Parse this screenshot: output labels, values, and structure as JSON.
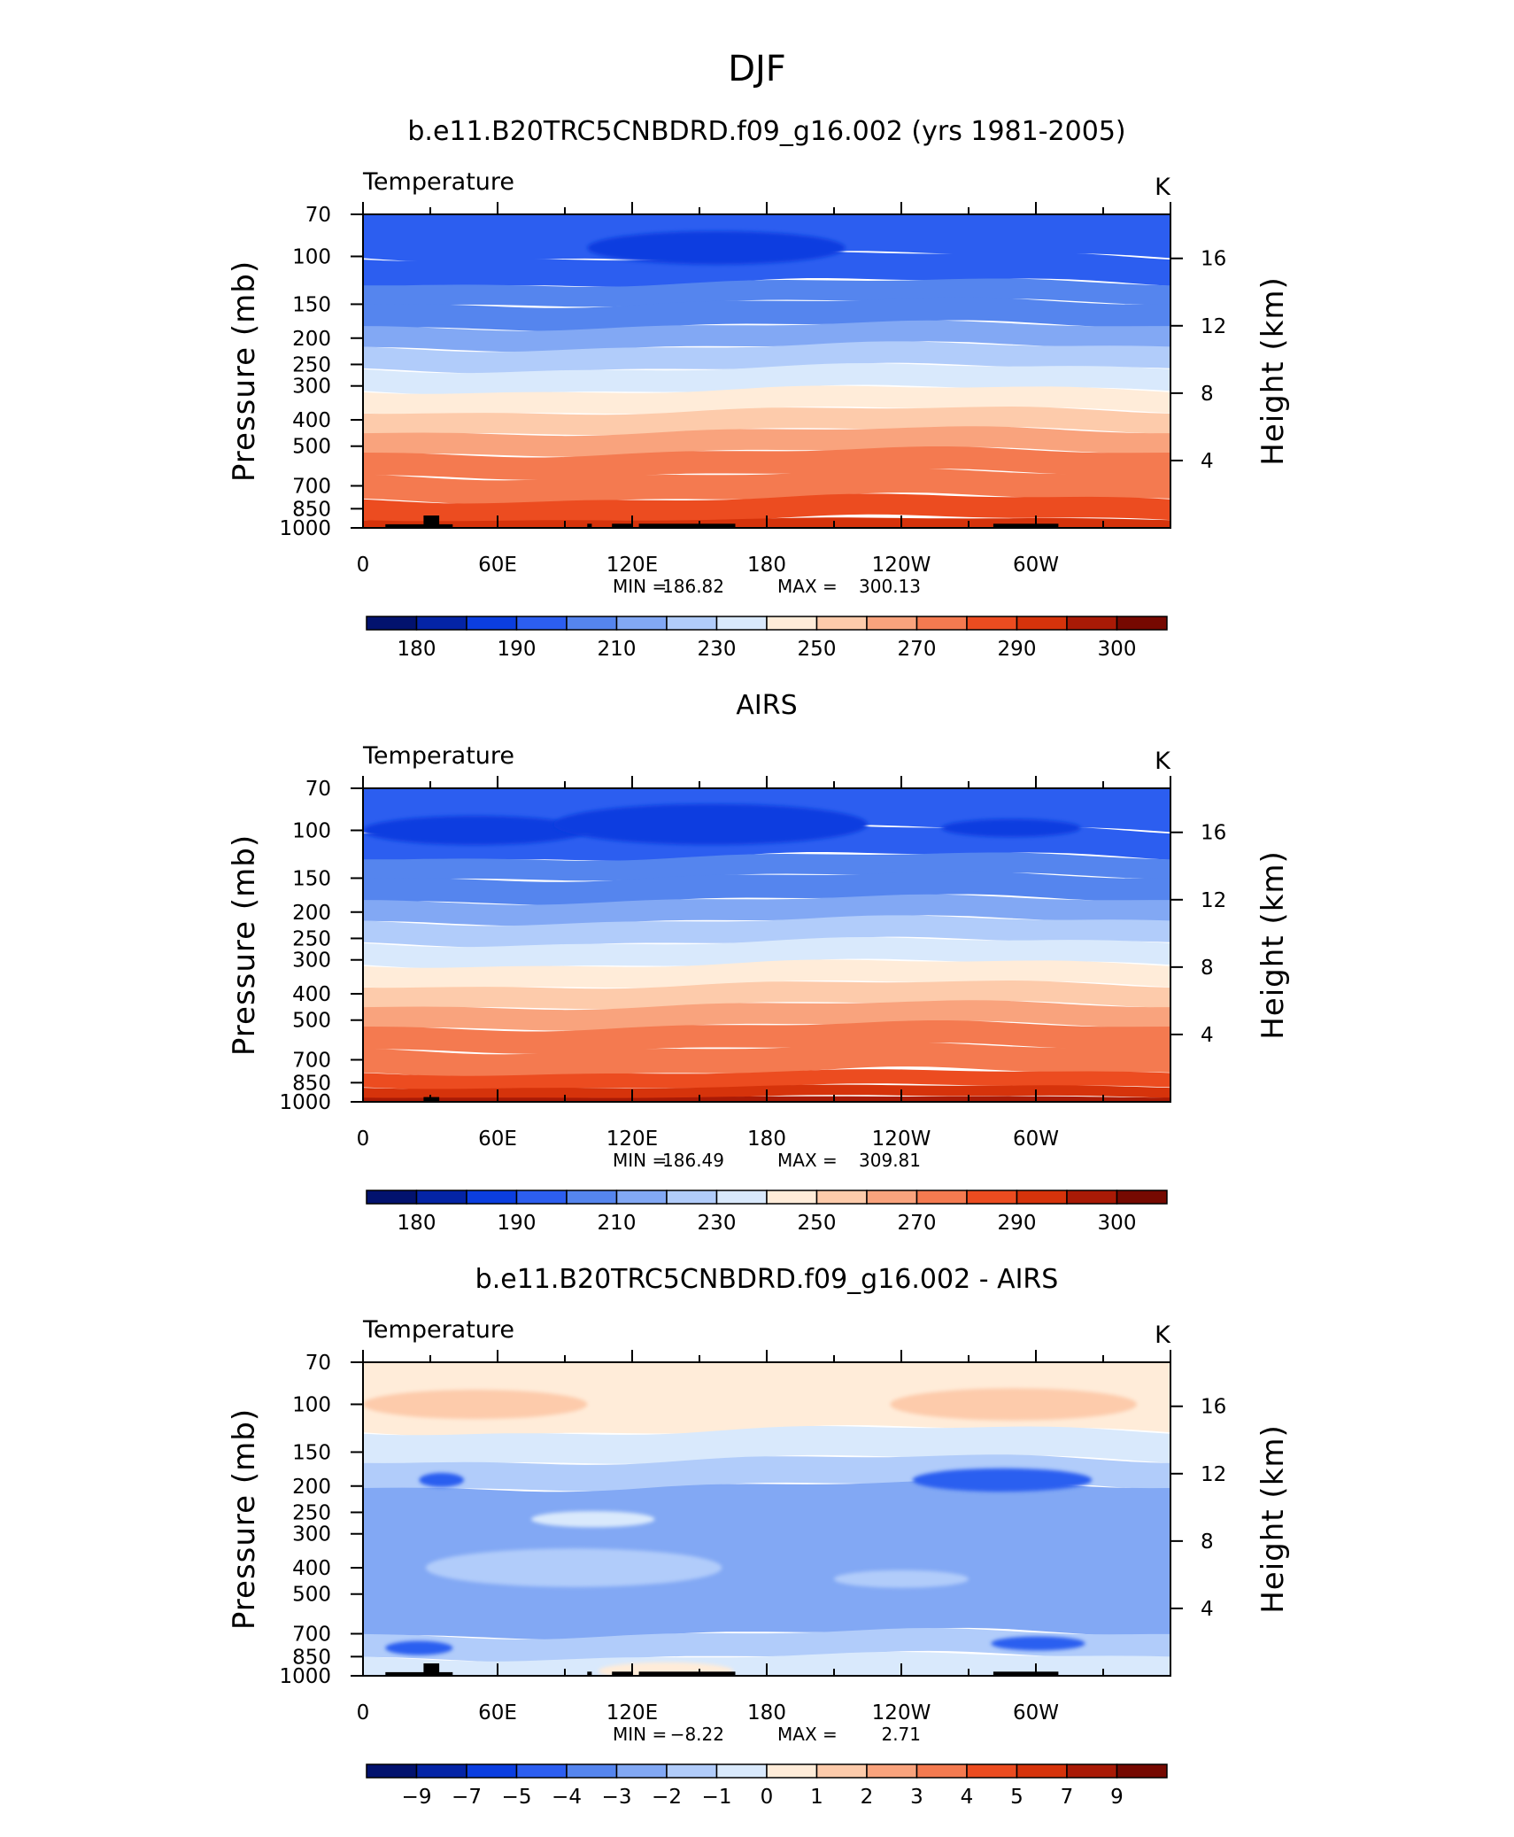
{
  "figure": {
    "title": "DJF"
  },
  "chart_data": [
    {
      "type": "heatmap",
      "title": "b.e11.B20TRC5CNBDRD.f09_g16.002 (yrs 1981-2005)",
      "variable": "Temperature",
      "units": "K",
      "xlabel": "",
      "ylabel": "Pressure (mb)",
      "ylabel_right": "Height (km)",
      "x_ticks": [
        "0",
        "60E",
        "120E",
        "180",
        "120W",
        "60W"
      ],
      "y_ticks": [
        "70",
        "100",
        "150",
        "200",
        "250",
        "300",
        "400",
        "500",
        "700",
        "850",
        "1000"
      ],
      "y_ticks_right": [
        "16",
        "12",
        "8",
        "4"
      ],
      "y_scale": "log",
      "stats": {
        "min_label": "MIN =",
        "min": "186.82",
        "max_label": "MAX =",
        "max": "300.13"
      },
      "colorbar": {
        "labels": [
          "180",
          "190",
          "210",
          "230",
          "250",
          "270",
          "290",
          "300"
        ],
        "colors": [
          "#02126e",
          "#0424a6",
          "#0b3ee0",
          "#2c5ef0",
          "#5585ee",
          "#82a8f4",
          "#b1ccfa",
          "#d9e9fc",
          "#ffecd9",
          "#fdcbab",
          "#f9a37d",
          "#f47a50",
          "#ec4c20",
          "#d6330b",
          "#a91a06",
          "#760901"
        ]
      },
      "bands": [
        {
          "p": [
            70,
            100
          ],
          "value": 200,
          "color": "#2c5ef0"
        },
        {
          "p": [
            100,
            125
          ],
          "value": 205,
          "color": "#2c5ef0"
        },
        {
          "p": [
            125,
            148
          ],
          "value": 212,
          "color": "#5585ee"
        },
        {
          "p": [
            148,
            180
          ],
          "value": 218,
          "color": "#5585ee"
        },
        {
          "p": [
            180,
            215
          ],
          "value": 222,
          "color": "#82a8f4"
        },
        {
          "p": [
            215,
            258
          ],
          "value": 228,
          "color": "#b1ccfa"
        },
        {
          "p": [
            258,
            310
          ],
          "value": 238,
          "color": "#d9e9fc"
        },
        {
          "p": [
            310,
            370
          ],
          "value": 248,
          "color": "#ffecd9"
        },
        {
          "p": [
            370,
            440
          ],
          "value": 255,
          "color": "#fdcbab"
        },
        {
          "p": [
            440,
            525
          ],
          "value": 262,
          "color": "#f9a37d"
        },
        {
          "p": [
            525,
            635
          ],
          "value": 270,
          "color": "#f47a50"
        },
        {
          "p": [
            635,
            780
          ],
          "value": 278,
          "color": "#f47a50"
        },
        {
          "p": [
            780,
            930
          ],
          "value": 288,
          "color": "#ec4c20"
        },
        {
          "p": [
            930,
            1000
          ],
          "value": 296,
          "color": "#d6330b"
        }
      ],
      "blobs": [
        {
          "lon": [
            100,
            215
          ],
          "p_center": 93,
          "color": "#0b3ee0"
        }
      ],
      "terrain": [
        {
          "lon": [
            10,
            40
          ],
          "p_top": 970
        },
        {
          "lon": [
            27,
            34
          ],
          "p_top": 900
        },
        {
          "lon": [
            100,
            102
          ],
          "p_top": 965
        },
        {
          "lon": [
            111,
            120
          ],
          "p_top": 965
        },
        {
          "lon": [
            123,
            166
          ],
          "p_top": 965
        },
        {
          "lon": [
            281,
            310
          ],
          "p_top": 965
        }
      ]
    },
    {
      "type": "heatmap",
      "title": "AIRS",
      "variable": "Temperature",
      "units": "K",
      "xlabel": "",
      "ylabel": "Pressure (mb)",
      "ylabel_right": "Height (km)",
      "x_ticks": [
        "0",
        "60E",
        "120E",
        "180",
        "120W",
        "60W"
      ],
      "y_ticks": [
        "70",
        "100",
        "150",
        "200",
        "250",
        "300",
        "400",
        "500",
        "700",
        "850",
        "1000"
      ],
      "y_ticks_right": [
        "16",
        "12",
        "8",
        "4"
      ],
      "y_scale": "log",
      "stats": {
        "min_label": "MIN =",
        "min": "186.49",
        "max_label": "MAX =",
        "max": "309.81"
      },
      "colorbar": {
        "labels": [
          "180",
          "190",
          "210",
          "230",
          "250",
          "270",
          "290",
          "300"
        ],
        "colors": [
          "#02126e",
          "#0424a6",
          "#0b3ee0",
          "#2c5ef0",
          "#5585ee",
          "#82a8f4",
          "#b1ccfa",
          "#d9e9fc",
          "#ffecd9",
          "#fdcbab",
          "#f9a37d",
          "#f47a50",
          "#ec4c20",
          "#d6330b",
          "#a91a06",
          "#760901"
        ]
      },
      "bands": [
        {
          "p": [
            70,
            100
          ],
          "value": 200,
          "color": "#2c5ef0"
        },
        {
          "p": [
            100,
            125
          ],
          "value": 205,
          "color": "#2c5ef0"
        },
        {
          "p": [
            125,
            148
          ],
          "value": 212,
          "color": "#5585ee"
        },
        {
          "p": [
            148,
            180
          ],
          "value": 218,
          "color": "#5585ee"
        },
        {
          "p": [
            180,
            215
          ],
          "value": 222,
          "color": "#82a8f4"
        },
        {
          "p": [
            215,
            258
          ],
          "value": 228,
          "color": "#b1ccfa"
        },
        {
          "p": [
            258,
            310
          ],
          "value": 238,
          "color": "#d9e9fc"
        },
        {
          "p": [
            310,
            370
          ],
          "value": 248,
          "color": "#ffecd9"
        },
        {
          "p": [
            370,
            440
          ],
          "value": 255,
          "color": "#fdcbab"
        },
        {
          "p": [
            440,
            525
          ],
          "value": 262,
          "color": "#f9a37d"
        },
        {
          "p": [
            525,
            635
          ],
          "value": 270,
          "color": "#f47a50"
        },
        {
          "p": [
            635,
            780
          ],
          "value": 278,
          "color": "#f47a50"
        },
        {
          "p": [
            780,
            880
          ],
          "value": 288,
          "color": "#ec4c20"
        },
        {
          "p": [
            880,
            960
          ],
          "value": 296,
          "color": "#d6330b"
        },
        {
          "p": [
            960,
            1000
          ],
          "value": 302,
          "color": "#a91a06"
        }
      ],
      "blobs": [
        {
          "lon": [
            0,
            100
          ],
          "p_center": 100,
          "color": "#0b3ee0"
        },
        {
          "lon": [
            85,
            225
          ],
          "p_center": 95,
          "color": "#0b3ee0"
        },
        {
          "lon": [
            258,
            320
          ],
          "p_center": 98,
          "color": "#0b3ee0"
        }
      ],
      "terrain": [
        {
          "lon": [
            27,
            34
          ],
          "p_top": 960
        }
      ]
    },
    {
      "type": "heatmap",
      "title": "b.e11.B20TRC5CNBDRD.f09_g16.002 - AIRS",
      "variable": "Temperature",
      "units": "K",
      "xlabel": "",
      "ylabel": "Pressure (mb)",
      "ylabel_right": "Height (km)",
      "x_ticks": [
        "0",
        "60E",
        "120E",
        "180",
        "120W",
        "60W"
      ],
      "y_ticks": [
        "70",
        "100",
        "150",
        "200",
        "250",
        "300",
        "400",
        "500",
        "700",
        "850",
        "1000"
      ],
      "y_ticks_right": [
        "16",
        "12",
        "8",
        "4"
      ],
      "y_scale": "log",
      "stats": {
        "min_label": "MIN =",
        "min": "−8.22",
        "max_label": "MAX =",
        "max": "2.71"
      },
      "colorbar": {
        "labels": [
          "−9",
          "−7",
          "−5",
          "−4",
          "−3",
          "−2",
          "−1",
          "0",
          "1",
          "2",
          "3",
          "4",
          "5",
          "7",
          "9"
        ],
        "colors": [
          "#02126e",
          "#0424a6",
          "#0b3ee0",
          "#2c5ef0",
          "#5585ee",
          "#82a8f4",
          "#b1ccfa",
          "#d9e9fc",
          "#ffecd9",
          "#fdcbab",
          "#f9a37d",
          "#f47a50",
          "#ec4c20",
          "#d6330b",
          "#a91a06",
          "#760901"
        ]
      },
      "bands": [
        {
          "p": [
            70,
            125
          ],
          "value": 0.5,
          "color": "#ffecd9"
        },
        {
          "p": [
            125,
            160
          ],
          "value": -0.5,
          "color": "#d9e9fc"
        },
        {
          "p": [
            160,
            200
          ],
          "value": -1.5,
          "color": "#b1ccfa"
        },
        {
          "p": [
            200,
            700
          ],
          "value": -2.5,
          "color": "#82a8f4"
        },
        {
          "p": [
            700,
            850
          ],
          "value": -1.5,
          "color": "#b1ccfa"
        },
        {
          "p": [
            850,
            1000
          ],
          "value": -0.5,
          "color": "#d9e9fc"
        }
      ],
      "blobs": [
        {
          "lon": [
            0,
            100
          ],
          "p_center": 100,
          "color": "#fdcbab"
        },
        {
          "lon": [
            235,
            345
          ],
          "p_center": 100,
          "color": "#fdcbab"
        },
        {
          "lon": [
            28,
            160
          ],
          "p_center": 400,
          "color": "#b1ccfa"
        },
        {
          "lon": [
            210,
            270
          ],
          "p_center": 440,
          "color": "#b1ccfa"
        },
        {
          "lon": [
            75,
            130
          ],
          "p_center": 265,
          "color": "#d9e9fc"
        },
        {
          "lon": [
            25,
            45
          ],
          "p_center": 190,
          "color": "#2c5ef0"
        },
        {
          "lon": [
            245,
            325
          ],
          "p_center": 190,
          "color": "#2c5ef0"
        },
        {
          "lon": [
            10,
            40
          ],
          "p_center": 790,
          "color": "#2c5ef0"
        },
        {
          "lon": [
            280,
            322
          ],
          "p_center": 760,
          "color": "#2c5ef0"
        },
        {
          "lon": [
            105,
            165
          ],
          "p_center": 960,
          "color": "#ffecd9"
        }
      ],
      "terrain": [
        {
          "lon": [
            10,
            40
          ],
          "p_top": 970
        },
        {
          "lon": [
            27,
            34
          ],
          "p_top": 900
        },
        {
          "lon": [
            100,
            102
          ],
          "p_top": 965
        },
        {
          "lon": [
            111,
            120
          ],
          "p_top": 965
        },
        {
          "lon": [
            123,
            166
          ],
          "p_top": 965
        },
        {
          "lon": [
            281,
            310
          ],
          "p_top": 965
        }
      ]
    }
  ]
}
